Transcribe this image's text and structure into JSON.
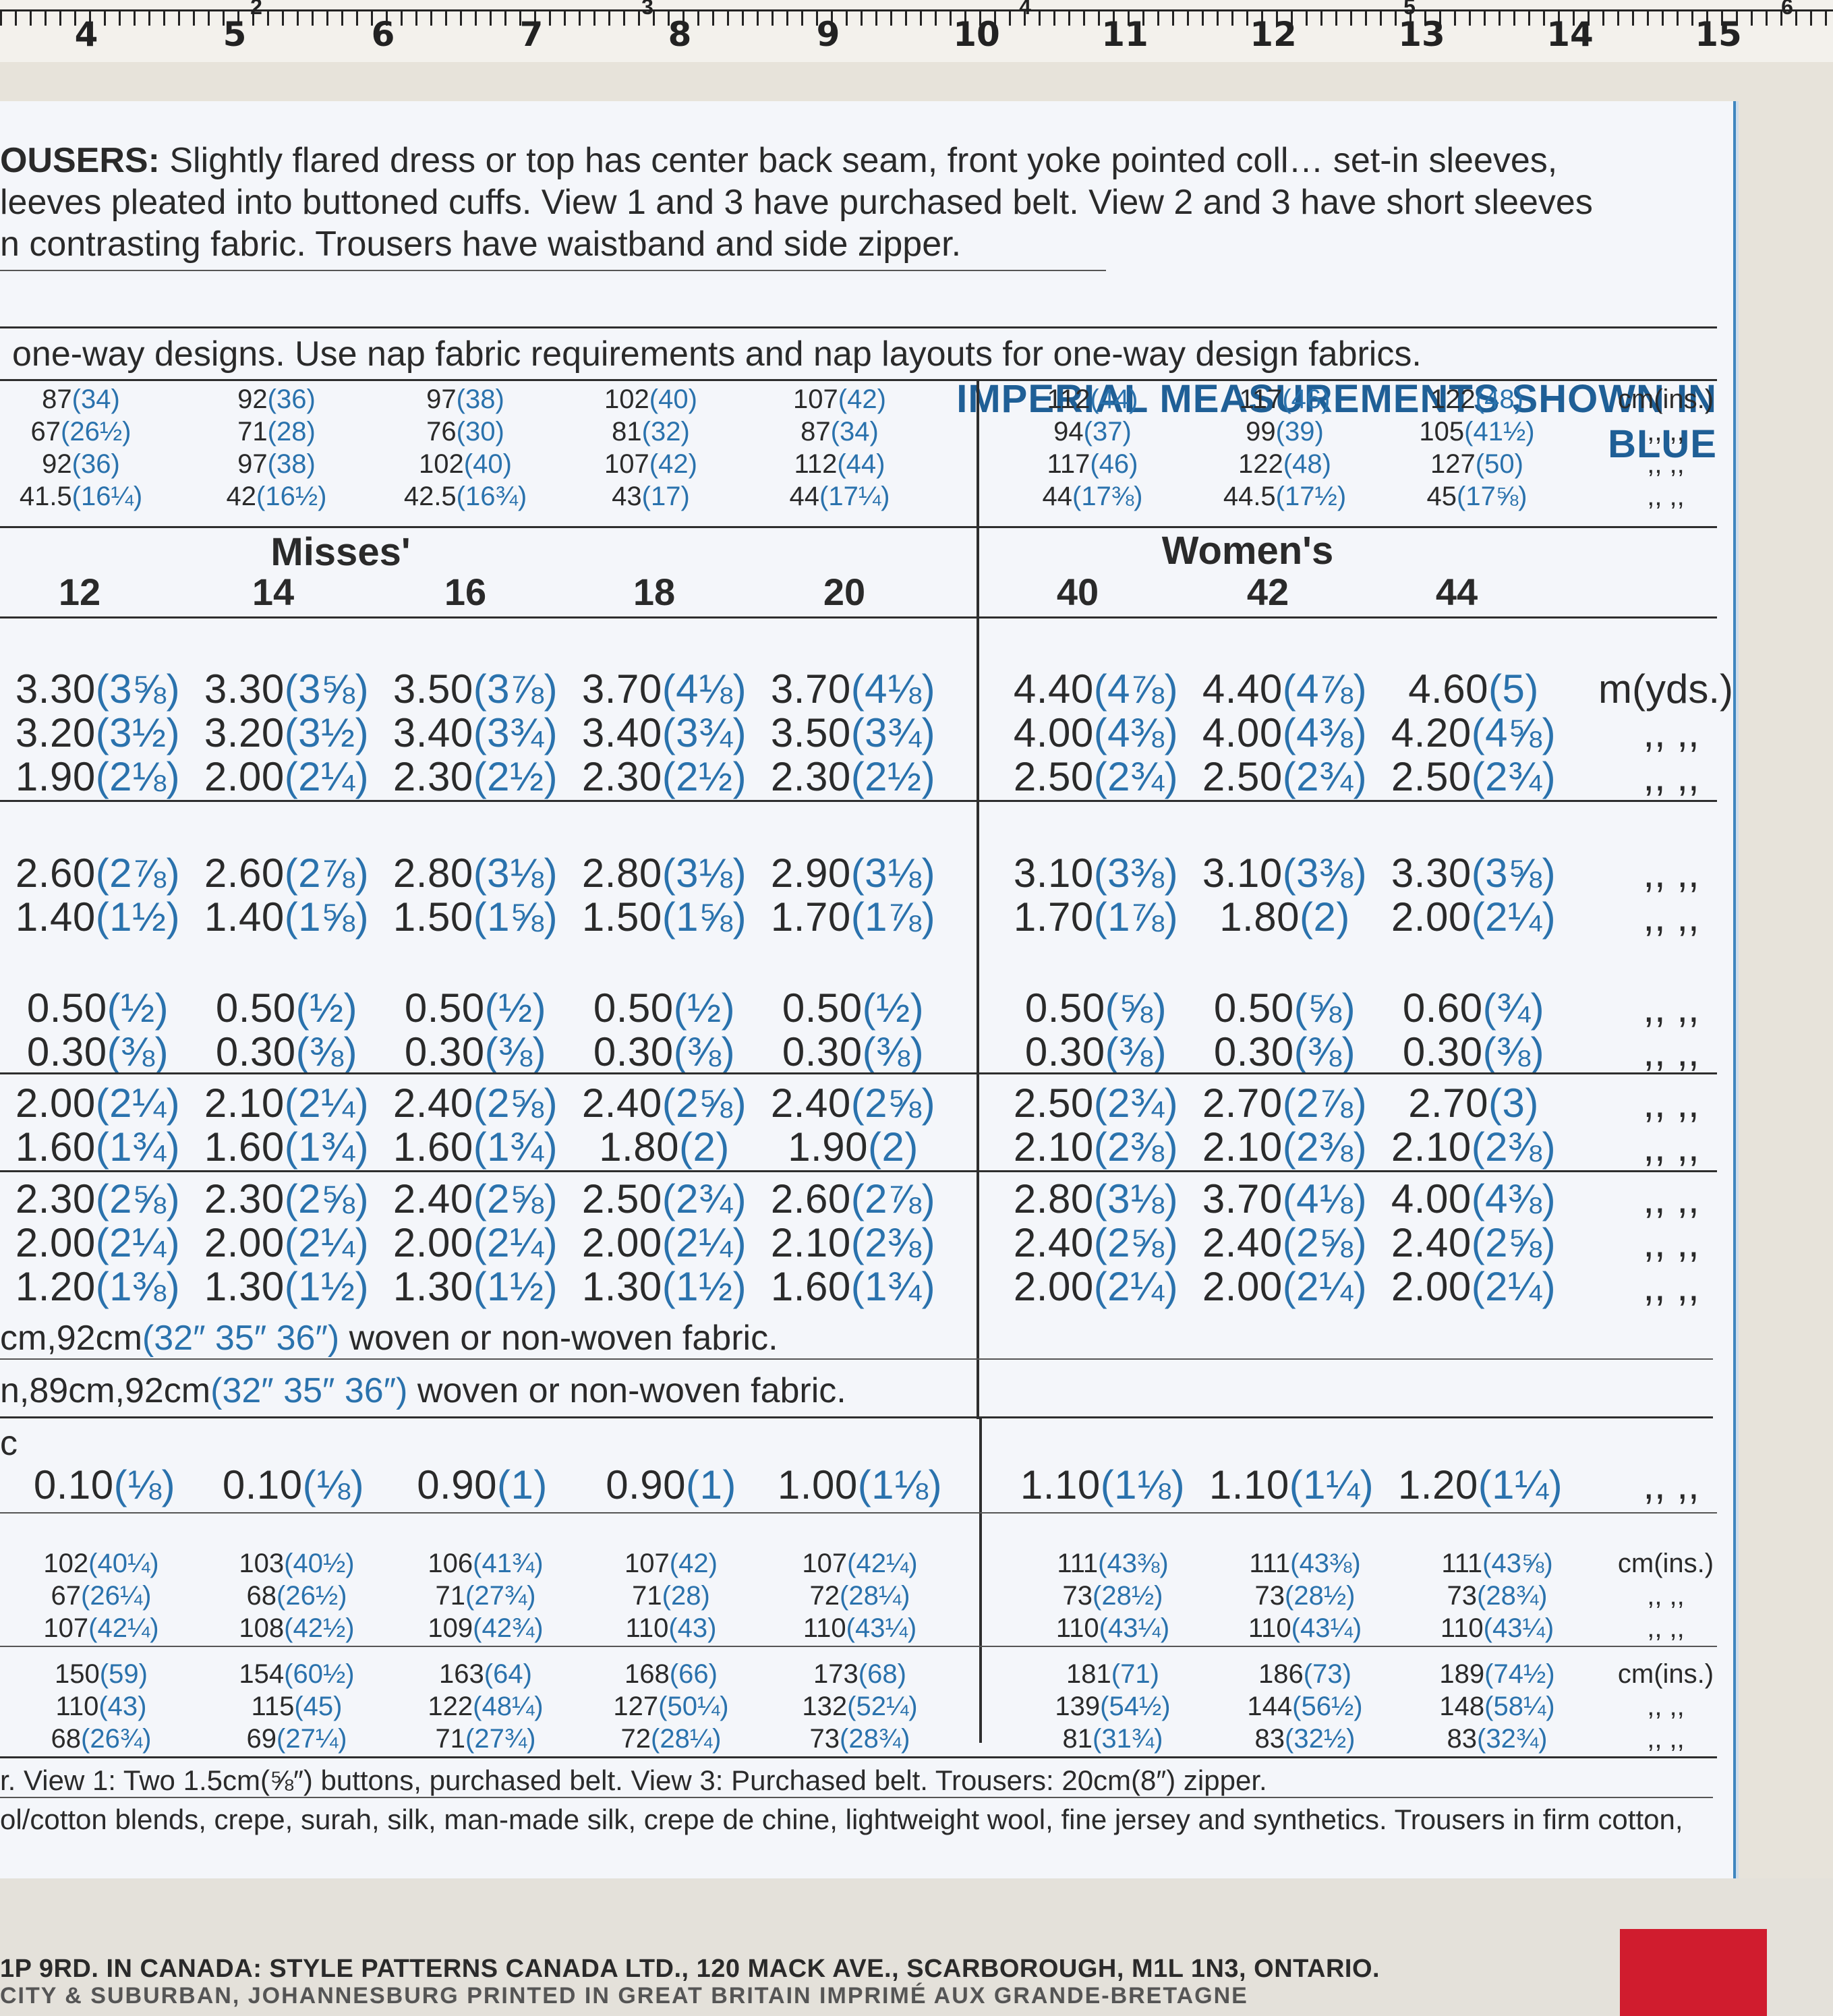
{
  "ruler": {
    "labels": [
      "4",
      "5",
      "6",
      "7",
      "8",
      "9",
      "10",
      "11",
      "12",
      "13",
      "14",
      "15"
    ],
    "top_labels": [
      "2",
      "3",
      "4",
      "5",
      "6"
    ]
  },
  "description": {
    "line1_bold": "OUSERS:",
    "line1_rest": " Slightly flared dress or top has center back seam, front yoke pointed coll… set-in sleeves,",
    "line2": "leeves pleated into buttoned cuffs. View 1 and 3 have purchased belt. View 2 and 3 have short sleeves",
    "line3": "n contrasting fabric. Trousers have waistband and side zipper."
  },
  "imperial_notice": "IMPERIAL MEASUREMENTS SHOWN IN BLUE",
  "nap_note": "one-way designs. Use nap fabric requirements and nap layouts for one-way design fabrics.",
  "body_measurements": {
    "rows": [
      [
        [
          "87",
          "34"
        ],
        [
          "92",
          "36"
        ],
        [
          "97",
          "38"
        ],
        [
          "102",
          "40"
        ],
        [
          "107",
          "42"
        ],
        [
          "112",
          "44"
        ],
        [
          "117",
          "46"
        ],
        [
          "122",
          "48"
        ]
      ],
      [
        [
          "67",
          "26½"
        ],
        [
          "71",
          "28"
        ],
        [
          "76",
          "30"
        ],
        [
          "81",
          "32"
        ],
        [
          "87",
          "34"
        ],
        [
          "94",
          "37"
        ],
        [
          "99",
          "39"
        ],
        [
          "105",
          "41½"
        ]
      ],
      [
        [
          "92",
          "36"
        ],
        [
          "97",
          "38"
        ],
        [
          "102",
          "40"
        ],
        [
          "107",
          "42"
        ],
        [
          "112",
          "44"
        ],
        [
          "117",
          "46"
        ],
        [
          "122",
          "48"
        ],
        [
          "127",
          "50"
        ]
      ],
      [
        [
          "41.5",
          "16¼"
        ],
        [
          "42",
          "16½"
        ],
        [
          "42.5",
          "16¾"
        ],
        [
          "43",
          "17"
        ],
        [
          "44",
          "17¼"
        ],
        [
          "44",
          "17⅜"
        ],
        [
          "44.5",
          "17½"
        ],
        [
          "45",
          "17⅝"
        ]
      ]
    ],
    "units": [
      "cm(ins.)",
      ",,  ,,",
      ",,  ,,",
      ",,  ,,"
    ]
  },
  "sizes": {
    "misses_label": "Misses'",
    "womens_label": "Women's",
    "list": [
      "12",
      "14",
      "16",
      "18",
      "20",
      "40",
      "42",
      "44"
    ]
  },
  "yardage_blocks": [
    {
      "rows": [
        [
          [
            "3.30",
            "3⅝"
          ],
          [
            "3.30",
            "3⅝"
          ],
          [
            "3.50",
            "3⅞"
          ],
          [
            "3.70",
            "4⅛"
          ],
          [
            "3.70",
            "4⅛"
          ],
          [
            "4.40",
            "4⅞"
          ],
          [
            "4.40",
            "4⅞"
          ],
          [
            "4.60",
            "5"
          ]
        ],
        [
          [
            "3.20",
            "3½"
          ],
          [
            "3.20",
            "3½"
          ],
          [
            "3.40",
            "3¾"
          ],
          [
            "3.40",
            "3¾"
          ],
          [
            "3.50",
            "3¾"
          ],
          [
            "4.00",
            "4⅜"
          ],
          [
            "4.00",
            "4⅜"
          ],
          [
            "4.20",
            "4⅝"
          ]
        ],
        [
          [
            "1.90",
            "2⅛"
          ],
          [
            "2.00",
            "2¼"
          ],
          [
            "2.30",
            "2½"
          ],
          [
            "2.30",
            "2½"
          ],
          [
            "2.30",
            "2½"
          ],
          [
            "2.50",
            "2¾"
          ],
          [
            "2.50",
            "2¾"
          ],
          [
            "2.50",
            "2¾"
          ]
        ]
      ],
      "units": [
        "m(yds.)",
        ",,  ,,",
        ",,  ,,"
      ]
    },
    {
      "rows": [
        [
          [
            "2.60",
            "2⅞"
          ],
          [
            "2.60",
            "2⅞"
          ],
          [
            "2.80",
            "3⅛"
          ],
          [
            "2.80",
            "3⅛"
          ],
          [
            "2.90",
            "3⅛"
          ],
          [
            "3.10",
            "3⅜"
          ],
          [
            "3.10",
            "3⅜"
          ],
          [
            "3.30",
            "3⅝"
          ]
        ],
        [
          [
            "1.40",
            "1½"
          ],
          [
            "1.40",
            "1⅝"
          ],
          [
            "1.50",
            "1⅝"
          ],
          [
            "1.50",
            "1⅝"
          ],
          [
            "1.70",
            "1⅞"
          ],
          [
            "1.70",
            "1⅞"
          ],
          [
            "1.80",
            "2"
          ],
          [
            "2.00",
            "2¼"
          ]
        ]
      ],
      "units": [
        ",,  ,,",
        ",,  ,,"
      ]
    },
    {
      "rows": [
        [
          [
            "0.50",
            "½"
          ],
          [
            "0.50",
            "½"
          ],
          [
            "0.50",
            "½"
          ],
          [
            "0.50",
            "½"
          ],
          [
            "0.50",
            "½"
          ],
          [
            "0.50",
            "⅝"
          ],
          [
            "0.50",
            "⅝"
          ],
          [
            "0.60",
            "¾"
          ]
        ],
        [
          [
            "0.30",
            "⅜"
          ],
          [
            "0.30",
            "⅜"
          ],
          [
            "0.30",
            "⅜"
          ],
          [
            "0.30",
            "⅜"
          ],
          [
            "0.30",
            "⅜"
          ],
          [
            "0.30",
            "⅜"
          ],
          [
            "0.30",
            "⅜"
          ],
          [
            "0.30",
            "⅜"
          ]
        ]
      ],
      "units": [
        ",,  ,,",
        ",,  ,,"
      ]
    },
    {
      "rows": [
        [
          [
            "2.00",
            "2¼"
          ],
          [
            "2.10",
            "2¼"
          ],
          [
            "2.40",
            "2⅝"
          ],
          [
            "2.40",
            "2⅝"
          ],
          [
            "2.40",
            "2⅝"
          ],
          [
            "2.50",
            "2¾"
          ],
          [
            "2.70",
            "2⅞"
          ],
          [
            "2.70",
            "3"
          ]
        ],
        [
          [
            "1.60",
            "1¾"
          ],
          [
            "1.60",
            "1¾"
          ],
          [
            "1.60",
            "1¾"
          ],
          [
            "1.80",
            "2"
          ],
          [
            "1.90",
            "2"
          ],
          [
            "2.10",
            "2⅜"
          ],
          [
            "2.10",
            "2⅜"
          ],
          [
            "2.10",
            "2⅜"
          ]
        ]
      ],
      "units": [
        ",,  ,,",
        ",,  ,,"
      ]
    },
    {
      "rows": [
        [
          [
            "2.30",
            "2⅝"
          ],
          [
            "2.30",
            "2⅝"
          ],
          [
            "2.40",
            "2⅝"
          ],
          [
            "2.50",
            "2¾"
          ],
          [
            "2.60",
            "2⅞"
          ],
          [
            "2.80",
            "3⅛"
          ],
          [
            "3.70",
            "4⅛"
          ],
          [
            "4.00",
            "4⅜"
          ]
        ],
        [
          [
            "2.00",
            "2¼"
          ],
          [
            "2.00",
            "2¼"
          ],
          [
            "2.00",
            "2¼"
          ],
          [
            "2.00",
            "2¼"
          ],
          [
            "2.10",
            "2⅜"
          ],
          [
            "2.40",
            "2⅝"
          ],
          [
            "2.40",
            "2⅝"
          ],
          [
            "2.40",
            "2⅝"
          ]
        ],
        [
          [
            "1.20",
            "1⅜"
          ],
          [
            "1.30",
            "1½"
          ],
          [
            "1.30",
            "1½"
          ],
          [
            "1.30",
            "1½"
          ],
          [
            "1.60",
            "1¾"
          ],
          [
            "2.00",
            "2¼"
          ],
          [
            "2.00",
            "2¼"
          ],
          [
            "2.00",
            "2¼"
          ]
        ]
      ],
      "units": [
        ",,  ,,",
        ",,  ,,",
        ",,  ,,"
      ]
    }
  ],
  "interfacing": {
    "line1_a": "cm,92cm",
    "line1_b": "(32″ 35″ 36″)",
    "line1_c": " woven or non-woven fabric.",
    "line2_a": "n,89cm,92cm",
    "line2_b": "(32″ 35″ 36″)",
    "line2_c": " woven or non-woven fabric."
  },
  "lining": {
    "label": "c",
    "row": [
      [
        "0.10",
        "⅛"
      ],
      [
        "0.10",
        "⅛"
      ],
      [
        "0.90",
        "1"
      ],
      [
        "0.90",
        "1"
      ],
      [
        "1.00",
        "1⅛"
      ],
      [
        "1.10",
        "1⅛"
      ],
      [
        "1.10",
        "1¼"
      ],
      [
        "1.20",
        "1¼"
      ]
    ],
    "unit": ",,  ,,"
  },
  "finished_1": {
    "rows": [
      [
        [
          "102",
          "40¼"
        ],
        [
          "103",
          "40½"
        ],
        [
          "106",
          "41¾"
        ],
        [
          "107",
          "42"
        ],
        [
          "107",
          "42¼"
        ],
        [
          "111",
          "43⅜"
        ],
        [
          "111",
          "43⅜"
        ],
        [
          "111",
          "43⅝"
        ]
      ],
      [
        [
          "67",
          "26¼"
        ],
        [
          "68",
          "26½"
        ],
        [
          "71",
          "27¾"
        ],
        [
          "71",
          "28"
        ],
        [
          "72",
          "28¼"
        ],
        [
          "73",
          "28½"
        ],
        [
          "73",
          "28½"
        ],
        [
          "73",
          "28¾"
        ]
      ],
      [
        [
          "107",
          "42¼"
        ],
        [
          "108",
          "42½"
        ],
        [
          "109",
          "42¾"
        ],
        [
          "110",
          "43"
        ],
        [
          "110",
          "43¼"
        ],
        [
          "110",
          "43¼"
        ],
        [
          "110",
          "43¼"
        ],
        [
          "110",
          "43¼"
        ]
      ]
    ],
    "units": [
      "cm(ins.)",
      ",,  ,,",
      ",,  ,,"
    ]
  },
  "finished_2": {
    "rows": [
      [
        [
          "150",
          "59"
        ],
        [
          "154",
          "60½"
        ],
        [
          "163",
          "64"
        ],
        [
          "168",
          "66"
        ],
        [
          "173",
          "68"
        ],
        [
          "181",
          "71"
        ],
        [
          "186",
          "73"
        ],
        [
          "189",
          "74½"
        ]
      ],
      [
        [
          "110",
          "43"
        ],
        [
          "115",
          "45"
        ],
        [
          "122",
          "48¼"
        ],
        [
          "127",
          "50¼"
        ],
        [
          "132",
          "52¼"
        ],
        [
          "139",
          "54½"
        ],
        [
          "144",
          "56½"
        ],
        [
          "148",
          "58¼"
        ]
      ],
      [
        [
          "68",
          "26¾"
        ],
        [
          "69",
          "27¼"
        ],
        [
          "71",
          "27¾"
        ],
        [
          "72",
          "28¼"
        ],
        [
          "73",
          "28¾"
        ],
        [
          "81",
          "31¾"
        ],
        [
          "83",
          "32½"
        ],
        [
          "83",
          "32¾"
        ]
      ]
    ],
    "units": [
      "cm(ins.)",
      ",,  ,,",
      ",,  ,,"
    ]
  },
  "notions": "r. View 1: Two 1.5cm(⅝″) buttons, purchased belt. View 3: Purchased belt. Trousers: 20cm(8″) zipper.",
  "fabrics": "ol/cotton blends, crepe, surah, silk, man-made silk, crepe de chine, lightweight wool, fine jersey and synthetics. Trousers in firm cotton,",
  "footer": {
    "line1": "1P 9RD.  IN CANADA: STYLE PATTERNS CANADA LTD., 120 MACK AVE., SCARBOROUGH, M1L 1N3, ONTARIO.",
    "line2": "CITY & SUBURBAN, JOHANNESBURG  PRINTED IN GREAT BRITAIN  IMPRIMÉ AUX GRANDE-BRETAGNE"
  },
  "colors": {
    "imperial_blue": "#2a72ad",
    "heading_blue": "#1f5f96",
    "sheet_border": "#3f86bf",
    "tag_red": "#d01c2e"
  }
}
